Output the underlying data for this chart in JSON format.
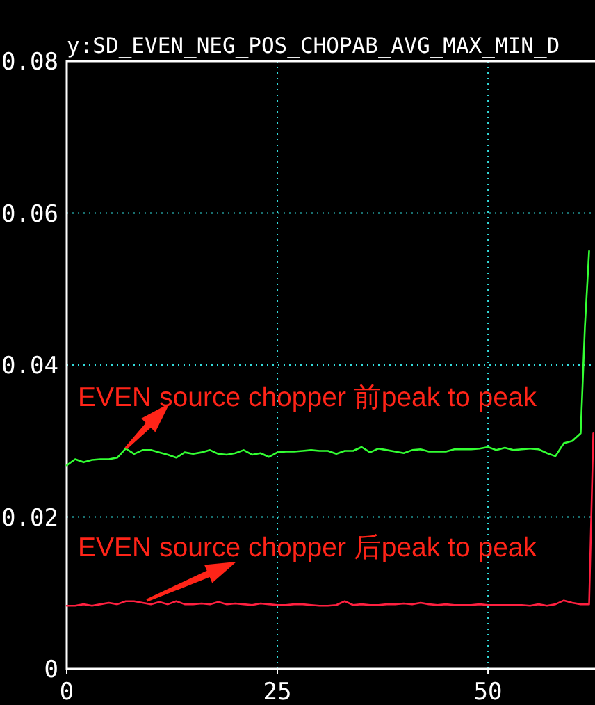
{
  "chart_data": {
    "type": "line",
    "title": "y:SD_EVEN_NEG_POS_CHOPAB_AVG_MAX_MIN_D",
    "xlim": [
      0,
      62.7
    ],
    "ylim": [
      0,
      0.08
    ],
    "xticks": [
      0,
      25,
      50
    ],
    "yticks": [
      0,
      0.02,
      0.04,
      0.06,
      0.08
    ],
    "grid": true,
    "marker": "none",
    "line_style": "solid",
    "series": [
      {
        "color": "#33ff33",
        "x": [
          0,
          1,
          2,
          3,
          4,
          5,
          6,
          7,
          8,
          9,
          10,
          11,
          12,
          13,
          14,
          15,
          16,
          17,
          18,
          19,
          20,
          21,
          22,
          23,
          24,
          25,
          26,
          27,
          28,
          29,
          30,
          31,
          32,
          33,
          34,
          35,
          36,
          37,
          38,
          39,
          40,
          41,
          42,
          43,
          44,
          45,
          46,
          47,
          48,
          49,
          50,
          51,
          52,
          53,
          54,
          55,
          56,
          57,
          58,
          59,
          60,
          61,
          61.5,
          62
        ],
        "values": [
          0.0268,
          0.0276,
          0.0272,
          0.0275,
          0.0276,
          0.0276,
          0.0278,
          0.029,
          0.0283,
          0.0288,
          0.0288,
          0.0285,
          0.0282,
          0.0278,
          0.0285,
          0.0283,
          0.0285,
          0.0288,
          0.0283,
          0.0282,
          0.0284,
          0.0288,
          0.0282,
          0.0284,
          0.0279,
          0.0285,
          0.0286,
          0.0286,
          0.0287,
          0.0288,
          0.0287,
          0.0287,
          0.0283,
          0.0287,
          0.0287,
          0.0292,
          0.0285,
          0.029,
          0.0288,
          0.0286,
          0.0284,
          0.0288,
          0.0289,
          0.0286,
          0.0286,
          0.0286,
          0.0289,
          0.0289,
          0.0289,
          0.029,
          0.0292,
          0.0288,
          0.0291,
          0.0288,
          0.0289,
          0.029,
          0.0289,
          0.0284,
          0.028,
          0.0297,
          0.03,
          0.031,
          0.045,
          0.055
        ]
      },
      {
        "color": "#ff2040",
        "x": [
          0,
          1,
          2,
          3,
          4,
          5,
          6,
          7,
          8,
          9,
          10,
          11,
          12,
          13,
          14,
          15,
          16,
          17,
          18,
          19,
          20,
          21,
          22,
          23,
          24,
          25,
          26,
          27,
          28,
          29,
          30,
          31,
          32,
          33,
          34,
          35,
          36,
          37,
          38,
          39,
          40,
          41,
          42,
          43,
          44,
          45,
          46,
          47,
          48,
          49,
          50,
          51,
          52,
          53,
          54,
          55,
          56,
          57,
          58,
          59,
          60,
          61,
          62,
          62.5
        ],
        "values": [
          0.0083,
          0.0083,
          0.0085,
          0.0083,
          0.0085,
          0.0087,
          0.0085,
          0.0089,
          0.0089,
          0.0087,
          0.0085,
          0.0088,
          0.0085,
          0.0089,
          0.0085,
          0.0085,
          0.0086,
          0.0085,
          0.0088,
          0.0085,
          0.0086,
          0.0085,
          0.0084,
          0.0086,
          0.0085,
          0.0084,
          0.0084,
          0.0085,
          0.0085,
          0.0084,
          0.0083,
          0.0083,
          0.0084,
          0.0089,
          0.0084,
          0.0085,
          0.0084,
          0.0084,
          0.0085,
          0.0085,
          0.0086,
          0.0085,
          0.0087,
          0.0085,
          0.0084,
          0.0085,
          0.0084,
          0.0084,
          0.0084,
          0.0085,
          0.0084,
          0.0084,
          0.0084,
          0.0084,
          0.0084,
          0.0083,
          0.0085,
          0.0083,
          0.0085,
          0.009,
          0.0087,
          0.0085,
          0.0085,
          0.031
        ]
      }
    ],
    "annotations": [
      {
        "text": "EVEN source chopper 前peak to peak",
        "x": 7,
        "y": 0.029
      },
      {
        "text": "EVEN source chopper 后peak to peak",
        "x": 9.5,
        "y": 0.009
      }
    ]
  }
}
